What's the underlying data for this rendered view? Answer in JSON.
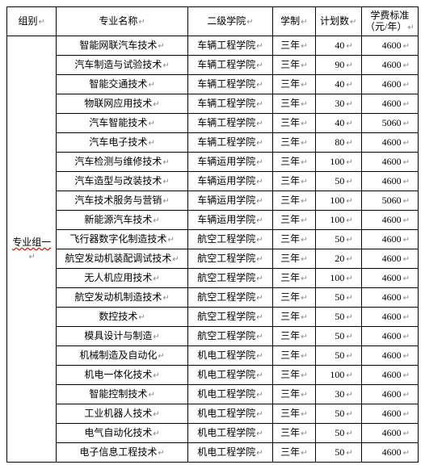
{
  "table": {
    "columns": [
      {
        "key": "group",
        "label": "组别"
      },
      {
        "key": "major",
        "label": "专业名称"
      },
      {
        "key": "college",
        "label": "二级学院"
      },
      {
        "key": "duration",
        "label": "学制"
      },
      {
        "key": "count",
        "label": "计划数"
      },
      {
        "key": "fee",
        "label_line1": "学费标准",
        "label_line2": "（元/年）"
      }
    ],
    "group_label": "专业组一",
    "mark_glyph": "↵",
    "rows": [
      {
        "major": "智能网联汽车技术",
        "college": "车辆工程学院",
        "duration": "三年",
        "count": "40",
        "fee": "4600"
      },
      {
        "major": "汽车制造与试验技术",
        "college": "车辆工程学院",
        "duration": "三年",
        "count": "90",
        "fee": "4600"
      },
      {
        "major": "智能交通技术",
        "college": "车辆工程学院",
        "duration": "三年",
        "count": "40",
        "fee": "4600"
      },
      {
        "major": "物联网应用技术",
        "college": "车辆工程学院",
        "duration": "三年",
        "count": "30",
        "fee": "4600"
      },
      {
        "major": "汽车智能技术",
        "college": "车辆工程学院",
        "duration": "三年",
        "count": "40",
        "fee": "5060"
      },
      {
        "major": "汽车电子技术",
        "college": "车辆工程学院",
        "duration": "三年",
        "count": "80",
        "fee": "4600"
      },
      {
        "major": "汽车检测与维修技术",
        "college": "车辆运用学院",
        "duration": "三年",
        "count": "100",
        "fee": "4600"
      },
      {
        "major": "汽车造型与改装技术",
        "college": "车辆运用学院",
        "duration": "三年",
        "count": "50",
        "fee": "4600"
      },
      {
        "major": "汽车技术服务与营销",
        "college": "车辆运用学院",
        "duration": "三年",
        "count": "100",
        "fee": "5060"
      },
      {
        "major": "新能源汽车技术",
        "college": "车辆运用学院",
        "duration": "三年",
        "count": "100",
        "fee": "4600"
      },
      {
        "major": "飞行器数字化制造技术",
        "college": "航空工程学院",
        "duration": "三年",
        "count": "50",
        "fee": "4600"
      },
      {
        "major": "航空发动机装配调试技术",
        "college": "航空工程学院",
        "duration": "三年",
        "count": "20",
        "fee": "4600"
      },
      {
        "major": "无人机应用技术",
        "college": "航空工程学院",
        "duration": "三年",
        "count": "100",
        "fee": "4600"
      },
      {
        "major": "航空发动机制造技术",
        "college": "航空工程学院",
        "duration": "三年",
        "count": "50",
        "fee": "4600"
      },
      {
        "major": "数控技术",
        "college": "航空工程学院",
        "duration": "三年",
        "count": "50",
        "fee": "4600"
      },
      {
        "major": "模具设计与制造",
        "college": "航空工程学院",
        "duration": "三年",
        "count": "50",
        "fee": "4600"
      },
      {
        "major": "机械制造及自动化",
        "college": "机电工程学院",
        "duration": "三年",
        "count": "50",
        "fee": "4600"
      },
      {
        "major": "机电一体化技术",
        "college": "机电工程学院",
        "duration": "三年",
        "count": "100",
        "fee": "4600"
      },
      {
        "major": "智能控制技术",
        "college": "机电工程学院",
        "duration": "三年",
        "count": "30",
        "fee": "4600"
      },
      {
        "major": "工业机器人技术",
        "college": "机电工程学院",
        "duration": "三年",
        "count": "50",
        "fee": "4600"
      },
      {
        "major": "电气自动化技术",
        "college": "机电工程学院",
        "duration": "三年",
        "count": "50",
        "fee": "4600"
      },
      {
        "major": "电子信息工程技术",
        "college": "机电工程学院",
        "duration": "三年",
        "count": "50",
        "fee": "4600"
      }
    ]
  },
  "colors": {
    "border": "#000000",
    "text": "#000000",
    "mark": "#888888",
    "wave": "#ff0000",
    "background": "#ffffff"
  }
}
